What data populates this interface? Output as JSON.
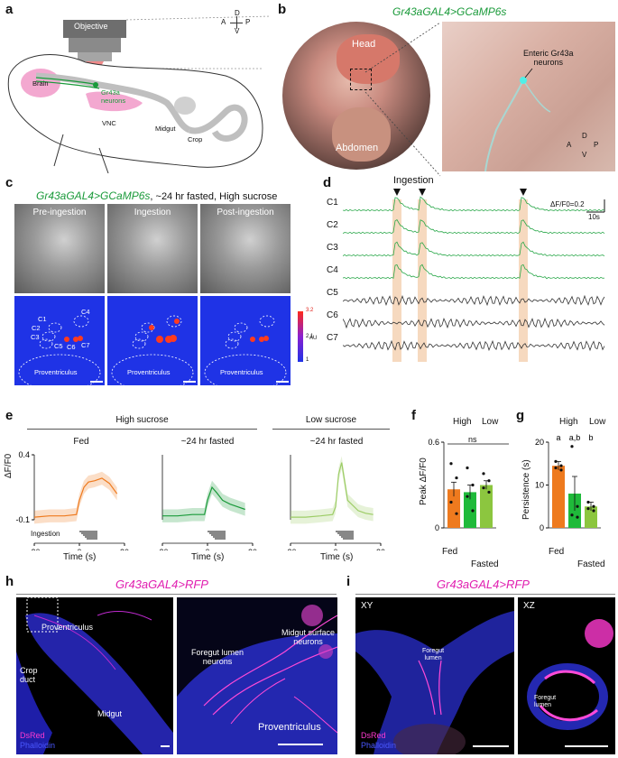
{
  "panel_a": {
    "label": "a",
    "objective": "Objective",
    "brain": "Brain",
    "gr43a_neurons": "Gr43a\nneurons",
    "vnc": "VNC",
    "midgut": "Midgut",
    "crop": "Crop",
    "compass": {
      "d": "D",
      "a": "A",
      "p": "P",
      "v": "V"
    }
  },
  "panel_b": {
    "label": "b",
    "title": "Gr43aGAL4>GCaMP6s",
    "head": "Head",
    "abdomen": "Abdomen",
    "enteric": "Enteric Gr43a\nneurons",
    "compass": {
      "d": "D",
      "a": "A",
      "p": "P",
      "v": "V"
    }
  },
  "panel_c": {
    "label": "c",
    "title_gene": "Gr43aGAL4>GCaMP6s",
    "title_cond": ", ~24 hr fasted, High sucrose",
    "frames": [
      "Pre-ingestion",
      "Ingestion",
      "Post-ingestion"
    ],
    "rois": [
      "C1",
      "C2",
      "C3",
      "C4",
      "C5",
      "C6",
      "C7"
    ],
    "proventriculus": "Proventriculus",
    "colorbar": {
      "max": "3.2",
      "mid": "2.1",
      "min": "1",
      "unit": "AU"
    }
  },
  "panel_d": {
    "label": "d",
    "ingestion": "Ingestion",
    "scale_y": "ΔF/F0=0.2",
    "scale_x": "10s",
    "traces": [
      "C1",
      "C2",
      "C3",
      "C4",
      "C5",
      "C6",
      "C7"
    ]
  },
  "panel_e": {
    "label": "e",
    "group_high": "High sucrose",
    "group_low": "Low sucrose",
    "subplots": [
      "Fed",
      "~24 hr fasted",
      "~24 hr fasted"
    ],
    "ylabel": "ΔF/F0",
    "yticks": [
      "0.4",
      "-0.1"
    ],
    "xticks": [
      "-30",
      "0",
      "30"
    ],
    "xlabel": "Time (s)",
    "ingestion": "Ingestion"
  },
  "panel_f": {
    "label": "f",
    "high": "High",
    "low": "Low",
    "ns": "ns",
    "ylabel": "Peak ΔF/F0",
    "yticks": [
      "0.6",
      "0"
    ],
    "fed": "Fed",
    "fasted": "Fasted"
  },
  "panel_g": {
    "label": "g",
    "high": "High",
    "low": "Low",
    "ylabel": "Persistence (s)",
    "yticks": [
      "20",
      "10",
      "0"
    ],
    "letters": [
      "a",
      "a,b",
      "b"
    ],
    "fed": "Fed",
    "fasted": "Fasted"
  },
  "panel_h": {
    "label": "h",
    "title": "Gr43aGAL4>RFP",
    "proventriculus": "Proventriculus",
    "crop_duct": "Crop\nduct",
    "midgut": "Midgut",
    "dsred": "DsRed",
    "phalloidin": "Phalloidin",
    "foregut_lumen_neurons": "Foregut lumen\nneurons",
    "midgut_surface_neurons": "Midgut surface\nneurons",
    "proventriculus2": "Proventriculus"
  },
  "panel_i": {
    "label": "i",
    "title": "Gr43aGAL4>RFP",
    "xy": "XY",
    "xz": "XZ",
    "foregut_lumen": "Foregut\nlumen",
    "foregut_lumen2": "Foregut\nlumen",
    "dsred": "DsRed",
    "phalloidin": "Phalloidin"
  },
  "chart_data": [
    {
      "type": "line",
      "panel": "e",
      "subplots": [
        {
          "name": "Fed",
          "color": "#ee7a1e",
          "x": [
            -30,
            -20,
            -10,
            -2,
            0,
            3,
            6,
            10,
            15,
            20,
            25
          ],
          "y": [
            -0.08,
            -0.07,
            -0.07,
            -0.06,
            0.05,
            0.15,
            0.19,
            0.2,
            0.22,
            0.18,
            0.1
          ]
        },
        {
          "name": "~24 hr fasted",
          "color": "#1a9a3a",
          "x": [
            -30,
            -20,
            -10,
            -2,
            0,
            3,
            6,
            10,
            15,
            20,
            25
          ],
          "y": [
            -0.07,
            -0.07,
            -0.06,
            -0.06,
            0.05,
            0.15,
            0.11,
            0.05,
            0.02,
            0.0,
            -0.02
          ]
        },
        {
          "name": "~24 hr fasted",
          "color": "#9ccc65",
          "x": [
            -30,
            -20,
            -10,
            -2,
            0,
            2,
            4,
            8,
            15,
            20,
            25
          ],
          "y": [
            -0.08,
            -0.08,
            -0.07,
            -0.06,
            0.0,
            0.25,
            0.34,
            0.05,
            -0.03,
            -0.05,
            -0.06
          ]
        }
      ],
      "xlabel": "Time (s)",
      "ylabel": "ΔF/F0",
      "ylim": [
        -0.1,
        0.4
      ],
      "xlim": [
        -30,
        30
      ]
    },
    {
      "type": "bar",
      "panel": "f",
      "categories": [
        "Fed High",
        "Fasted High",
        "Fasted Low"
      ],
      "values": [
        0.27,
        0.25,
        0.3
      ],
      "errors": [
        0.05,
        0.05,
        0.03
      ],
      "colors": [
        "#ee7a1e",
        "#1fba3a",
        "#8cc63f"
      ],
      "points": [
        [
          0.45,
          0.35,
          0.18,
          0.1
        ],
        [
          0.42,
          0.3,
          0.22,
          0.12
        ],
        [
          0.38,
          0.33,
          0.28,
          0.25
        ]
      ],
      "ylabel": "Peak ΔF/F0",
      "ylim": [
        0,
        0.6
      ]
    },
    {
      "type": "bar",
      "panel": "g",
      "categories": [
        "Fed High",
        "Fasted High",
        "Fasted Low"
      ],
      "values": [
        14.5,
        8.0,
        5.0
      ],
      "errors": [
        1.0,
        4.0,
        1.0
      ],
      "colors": [
        "#ee7a1e",
        "#1fba3a",
        "#8cc63f"
      ],
      "points": [
        [
          15.5,
          14.5,
          14.0,
          13.5
        ],
        [
          19.0,
          5.0,
          3.0,
          2.5
        ],
        [
          6.0,
          5.0,
          4.5,
          4.0
        ]
      ],
      "letters": [
        "a",
        "a,b",
        "b"
      ],
      "ylabel": "Persistence (s)",
      "ylim": [
        0,
        20
      ]
    }
  ]
}
